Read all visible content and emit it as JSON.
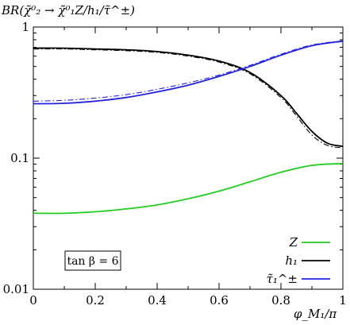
{
  "chart_data": {
    "type": "line",
    "title": "BR(χ̃⁰₂ → χ̃⁰₁Z/h₁/τ̃^±)",
    "xlabel": "φ_M₁/π",
    "ylabel": "",
    "xlim": [
      0,
      1
    ],
    "ylim": [
      0.01,
      1
    ],
    "yscale": "log",
    "x_ticks": [
      "0",
      "0.2",
      "0.4",
      "0.6",
      "0.8",
      "1"
    ],
    "y_ticks": [
      "1",
      "0.1",
      "0.01"
    ],
    "grid": false,
    "legend_position": "bottom-right",
    "annotation": "tan β = 6",
    "series": [
      {
        "name": "Z",
        "color": "#22cc22",
        "style": "solid",
        "x": [
          0,
          0.1,
          0.2,
          0.3,
          0.4,
          0.5,
          0.6,
          0.7,
          0.8,
          0.9,
          1.0
        ],
        "values": [
          0.038,
          0.038,
          0.039,
          0.041,
          0.044,
          0.049,
          0.056,
          0.066,
          0.078,
          0.088,
          0.091
        ]
      },
      {
        "name": "h₁",
        "color": "#000000",
        "style": "solid",
        "x": [
          0,
          0.1,
          0.2,
          0.3,
          0.4,
          0.5,
          0.6,
          0.7,
          0.8,
          0.85,
          0.9,
          0.95,
          1.0
        ],
        "values": [
          0.69,
          0.69,
          0.68,
          0.67,
          0.65,
          0.61,
          0.55,
          0.45,
          0.3,
          0.22,
          0.16,
          0.13,
          0.123
        ]
      },
      {
        "name": "h₁",
        "color": "#000000",
        "style": "dashdot",
        "x": [
          0,
          0.1,
          0.2,
          0.3,
          0.4,
          0.5,
          0.6,
          0.7,
          0.8,
          0.85,
          0.9,
          0.95,
          1.0
        ],
        "values": [
          0.68,
          0.68,
          0.67,
          0.66,
          0.64,
          0.6,
          0.54,
          0.44,
          0.29,
          0.21,
          0.15,
          0.125,
          0.12
        ]
      },
      {
        "name": "τ̃₁^±",
        "color": "#2222dd",
        "style": "solid",
        "x": [
          0,
          0.1,
          0.2,
          0.3,
          0.4,
          0.5,
          0.6,
          0.7,
          0.8,
          0.9,
          1.0
        ],
        "values": [
          0.26,
          0.262,
          0.272,
          0.29,
          0.32,
          0.36,
          0.42,
          0.5,
          0.61,
          0.72,
          0.78
        ]
      },
      {
        "name": "τ̃₁^±",
        "color": "#2222dd",
        "style": "dashdot",
        "x": [
          0,
          0.1,
          0.2,
          0.3,
          0.4,
          0.5,
          0.6,
          0.7,
          0.8,
          0.9,
          1.0
        ],
        "values": [
          0.272,
          0.276,
          0.287,
          0.305,
          0.335,
          0.375,
          0.43,
          0.51,
          0.62,
          0.73,
          0.785
        ]
      }
    ],
    "legend": [
      {
        "label": "Z",
        "color": "#22cc22"
      },
      {
        "label": "h₁",
        "color": "#000000"
      },
      {
        "label": "τ̃₁^±",
        "color": "#2222dd"
      }
    ]
  }
}
